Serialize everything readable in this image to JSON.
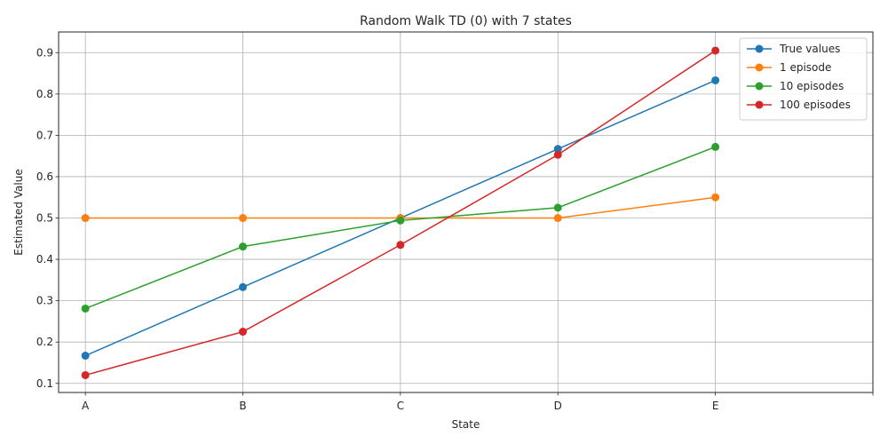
{
  "chart_data": {
    "type": "line",
    "title": "Random Walk TD (0) with 7 states",
    "xlabel": "State",
    "ylabel": "Estimated Value",
    "categories": [
      "A",
      "B",
      "C",
      "D",
      "E"
    ],
    "xlim": [
      -0.17,
      5.0
    ],
    "ylim": [
      0.078,
      0.95
    ],
    "yticks": [
      0.1,
      0.2,
      0.3,
      0.4,
      0.5,
      0.6,
      0.7,
      0.8,
      0.9
    ],
    "grid": true,
    "legend_position": "top-right",
    "series": [
      {
        "name": "True values",
        "color": "#1f77b4",
        "values": [
          0.167,
          0.333,
          0.5,
          0.667,
          0.833
        ]
      },
      {
        "name": "1 episode",
        "color": "#ff7f0e",
        "values": [
          0.5,
          0.5,
          0.5,
          0.5,
          0.55
        ]
      },
      {
        "name": "10 episodes",
        "color": "#2ca02c",
        "values": [
          0.281,
          0.431,
          0.494,
          0.525,
          0.672
        ]
      },
      {
        "name": "100 episodes",
        "color": "#d62728",
        "values": [
          0.12,
          0.225,
          0.435,
          0.653,
          0.905
        ]
      }
    ]
  }
}
